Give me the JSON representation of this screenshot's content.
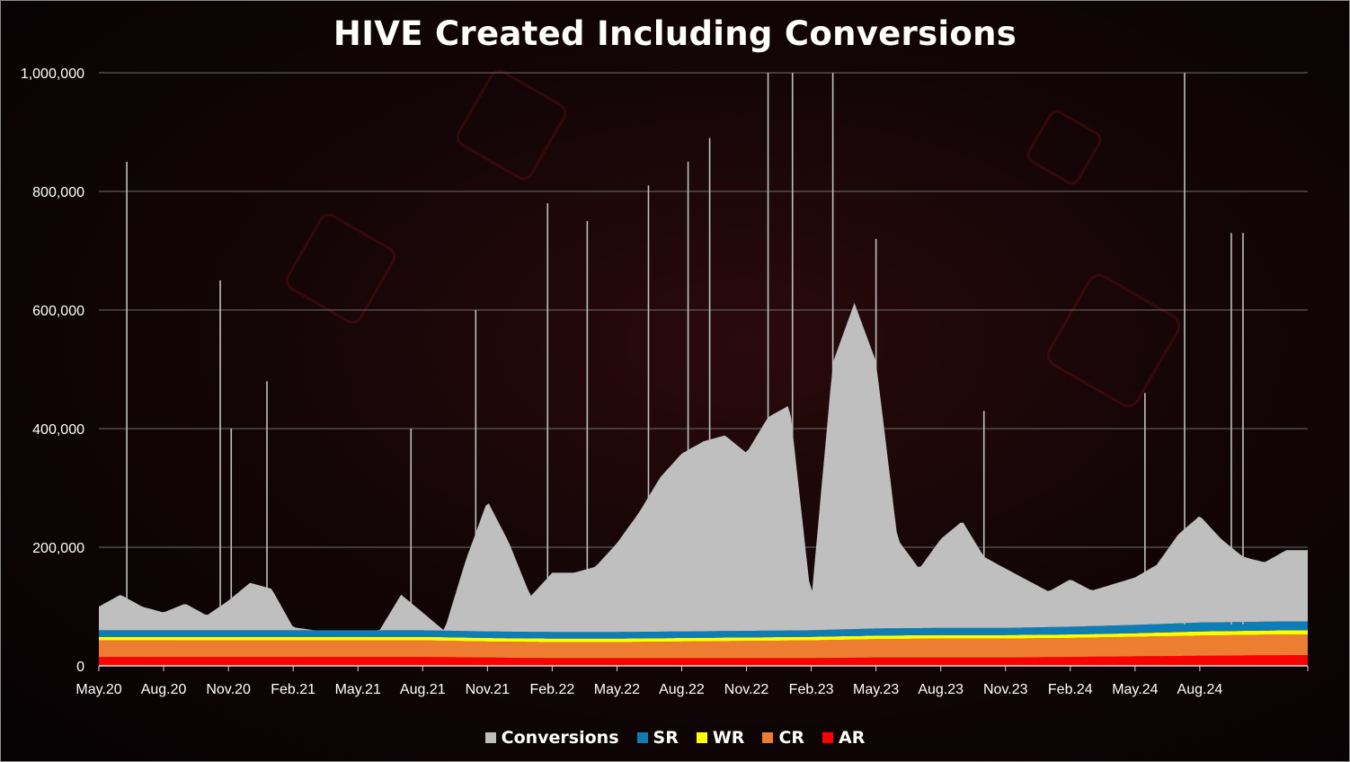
{
  "chart_data": {
    "type": "area",
    "title": "HIVE Created Including Conversions",
    "xlabel": "",
    "ylabel": "",
    "ylim": [
      0,
      1000000
    ],
    "y_ticks": [
      "0",
      "200,000",
      "400,000",
      "600,000",
      "800,000",
      "1,000,000"
    ],
    "x_ticks": [
      "May.20",
      "Aug.20",
      "Nov.20",
      "Feb.21",
      "May.21",
      "Aug.21",
      "Nov.21",
      "Feb.22",
      "May.22",
      "Aug.22",
      "Nov.22",
      "Feb.23",
      "May.23",
      "Aug.23",
      "Nov.23",
      "Feb.24",
      "May.24",
      "Aug.24"
    ],
    "x_range": [
      "2020-05-01",
      "2024-12-31"
    ],
    "stacking": "stacked",
    "grid": true,
    "legend_position": "bottom",
    "series": [
      {
        "name": "AR",
        "color": "#ff0000",
        "monthly_x": [
          "May.20",
          "Aug.20",
          "Nov.20",
          "Feb.21",
          "May.21",
          "Aug.21",
          "Nov.21",
          "Feb.22",
          "May.22",
          "Aug.22",
          "Nov.22",
          "Feb.23",
          "May.23",
          "Aug.23",
          "Nov.23",
          "Feb.24",
          "May.24",
          "Aug.24",
          "Dec.24"
        ],
        "values": [
          15000,
          15000,
          15000,
          15000,
          15000,
          15000,
          14000,
          13000,
          13000,
          13000,
          13000,
          13000,
          14000,
          14000,
          14000,
          15000,
          16000,
          17000,
          18000
        ]
      },
      {
        "name": "CR",
        "color": "#ed7d31",
        "monthly_x": [
          "May.20",
          "Aug.20",
          "Nov.20",
          "Feb.21",
          "May.21",
          "Aug.21",
          "Nov.21",
          "Feb.22",
          "May.22",
          "Aug.22",
          "Nov.22",
          "Feb.23",
          "May.23",
          "Aug.23",
          "Nov.23",
          "Feb.24",
          "May.24",
          "Aug.24",
          "Dec.24"
        ],
        "values": [
          28000,
          28000,
          28000,
          28000,
          28000,
          28000,
          27000,
          27000,
          27000,
          28000,
          29000,
          30000,
          31000,
          32000,
          32000,
          32000,
          33000,
          34000,
          35000
        ]
      },
      {
        "name": "WR",
        "color": "#ffff00",
        "monthly_x": [
          "May.20",
          "Aug.20",
          "Nov.20",
          "Feb.21",
          "May.21",
          "Aug.21",
          "Nov.21",
          "Feb.22",
          "May.22",
          "Aug.22",
          "Nov.22",
          "Feb.23",
          "May.23",
          "Aug.23",
          "Nov.23",
          "Feb.24",
          "May.24",
          "Aug.24",
          "Dec.24"
        ],
        "values": [
          6000,
          6000,
          6000,
          6000,
          6000,
          6000,
          6000,
          6000,
          6000,
          6000,
          6000,
          6000,
          6000,
          6000,
          6000,
          6000,
          6000,
          7000,
          7000
        ]
      },
      {
        "name": "SR",
        "color": "#0e7cb5",
        "monthly_x": [
          "May.20",
          "Aug.20",
          "Nov.20",
          "Feb.21",
          "May.21",
          "Aug.21",
          "Nov.21",
          "Feb.22",
          "May.22",
          "Aug.22",
          "Nov.22",
          "Feb.23",
          "May.23",
          "Aug.23",
          "Nov.23",
          "Feb.24",
          "May.24",
          "Aug.24",
          "Dec.24"
        ],
        "values": [
          11000,
          11000,
          11000,
          11000,
          11000,
          11000,
          11000,
          11000,
          11000,
          11000,
          11000,
          11000,
          12000,
          12000,
          12000,
          13000,
          14000,
          15000,
          15000
        ]
      },
      {
        "name": "Conversions",
        "color": "#bfbfbf",
        "monthly_x": [
          "May.20",
          "Jun.20",
          "Jul.20",
          "Aug.20",
          "Sep.20",
          "Oct.20",
          "Nov.20",
          "Dec.20",
          "Jan.21",
          "Feb.21",
          "Mar.21",
          "Apr.21",
          "May.21",
          "Jun.21",
          "Jul.21",
          "Aug.21",
          "Sep.21",
          "Oct.21",
          "Nov.21",
          "Dec.21",
          "Jan.22",
          "Feb.22",
          "Mar.22",
          "Apr.22",
          "May.22",
          "Jun.22",
          "Jul.22",
          "Aug.22",
          "Sep.22",
          "Oct.22",
          "Nov.22",
          "Dec.22",
          "Jan.23",
          "Feb.23",
          "Mar.23",
          "Apr.23",
          "May.23",
          "Jun.23",
          "Jul.23",
          "Aug.23",
          "Sep.23",
          "Oct.23",
          "Nov.23",
          "Dec.23",
          "Jan.24",
          "Feb.24",
          "Mar.24",
          "Apr.24",
          "May.24",
          "Jun.24",
          "Jul.24",
          "Aug.24",
          "Sep.24",
          "Oct.24",
          "Nov.24",
          "Dec.24"
        ],
        "values": [
          40000,
          60000,
          40000,
          30000,
          45000,
          25000,
          50000,
          80000,
          70000,
          5000,
          0,
          0,
          0,
          0,
          60000,
          30000,
          0,
          120000,
          220000,
          150000,
          60000,
          100000,
          100000,
          110000,
          150000,
          200000,
          260000,
          300000,
          320000,
          330000,
          300000,
          360000,
          380000,
          50000,
          450000,
          550000,
          450000,
          150000,
          100000,
          150000,
          180000,
          120000,
          100000,
          80000,
          60000,
          80000,
          60000,
          70000,
          80000,
          100000,
          150000,
          180000,
          140000,
          110000,
          100000,
          120000
        ],
        "spikes": [
          {
            "x": "2020-06-10",
            "y": 850000
          },
          {
            "x": "2020-10-20",
            "y": 650000
          },
          {
            "x": "2020-11-05",
            "y": 400000
          },
          {
            "x": "2020-12-25",
            "y": 480000
          },
          {
            "x": "2021-07-15",
            "y": 400000
          },
          {
            "x": "2021-10-15",
            "y": 600000
          },
          {
            "x": "2022-01-25",
            "y": 780000
          },
          {
            "x": "2022-03-20",
            "y": 750000
          },
          {
            "x": "2022-06-15",
            "y": 810000
          },
          {
            "x": "2022-08-10",
            "y": 850000
          },
          {
            "x": "2022-09-10",
            "y": 890000
          },
          {
            "x": "2022-12-01",
            "y": 1000000
          },
          {
            "x": "2023-01-05",
            "y": 1000000
          },
          {
            "x": "2023-03-01",
            "y": 1000000
          },
          {
            "x": "2023-05-01",
            "y": 720000
          },
          {
            "x": "2023-10-01",
            "y": 430000
          },
          {
            "x": "2024-05-15",
            "y": 460000
          },
          {
            "x": "2024-07-10",
            "y": 1000000
          },
          {
            "x": "2024-09-15",
            "y": 730000
          },
          {
            "x": "2024-10-01",
            "y": 730000
          }
        ]
      }
    ]
  },
  "legend": {
    "items": [
      {
        "label": "Conversions",
        "color": "#bfbfbf"
      },
      {
        "label": "SR",
        "color": "#0e7cb5"
      },
      {
        "label": "WR",
        "color": "#ffff00"
      },
      {
        "label": "CR",
        "color": "#ed7d31"
      },
      {
        "label": "AR",
        "color": "#ff0000"
      }
    ]
  }
}
